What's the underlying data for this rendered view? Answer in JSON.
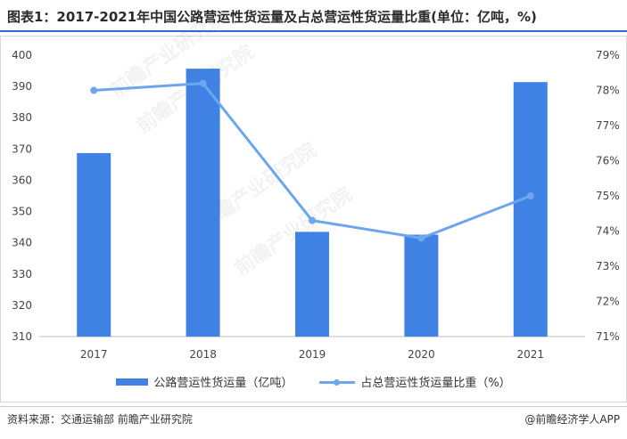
{
  "header": {
    "title": "图表1：2017-2021年中国公路营运性货运量及占总营运性货运量比重(单位：亿吨，%)"
  },
  "footer": {
    "source": "资料来源：交通运输部 前瞻产业研究院",
    "credit": "@前瞻经济学人APP"
  },
  "watermark": {
    "text": "前瞻产业研究院"
  },
  "colors": {
    "bar": "#3f82e4",
    "line": "#6ea6ee",
    "title_rule": "#2f6fd6"
  },
  "chart_data": {
    "type": "bar",
    "categories": [
      "2017",
      "2018",
      "2019",
      "2020",
      "2021"
    ],
    "series": [
      {
        "name": "公路营运性货运量（亿吨）",
        "type": "bar",
        "axis": "left",
        "values": [
          368.7,
          395.7,
          343.5,
          342.6,
          391.4
        ]
      },
      {
        "name": "占总营运性货运量比重（%）",
        "type": "line",
        "axis": "right",
        "values": [
          78.0,
          78.2,
          74.3,
          73.8,
          75.0
        ]
      }
    ],
    "y_left": {
      "lim": [
        310,
        400
      ],
      "ticks": [
        "310",
        "320",
        "330",
        "340",
        "350",
        "360",
        "370",
        "380",
        "390",
        "400"
      ]
    },
    "y_right": {
      "lim": [
        71,
        79
      ],
      "ticks": [
        "71%",
        "72%",
        "73%",
        "74%",
        "75%",
        "76%",
        "77%",
        "78%",
        "79%"
      ]
    },
    "grid": false,
    "legend_position": "bottom"
  }
}
